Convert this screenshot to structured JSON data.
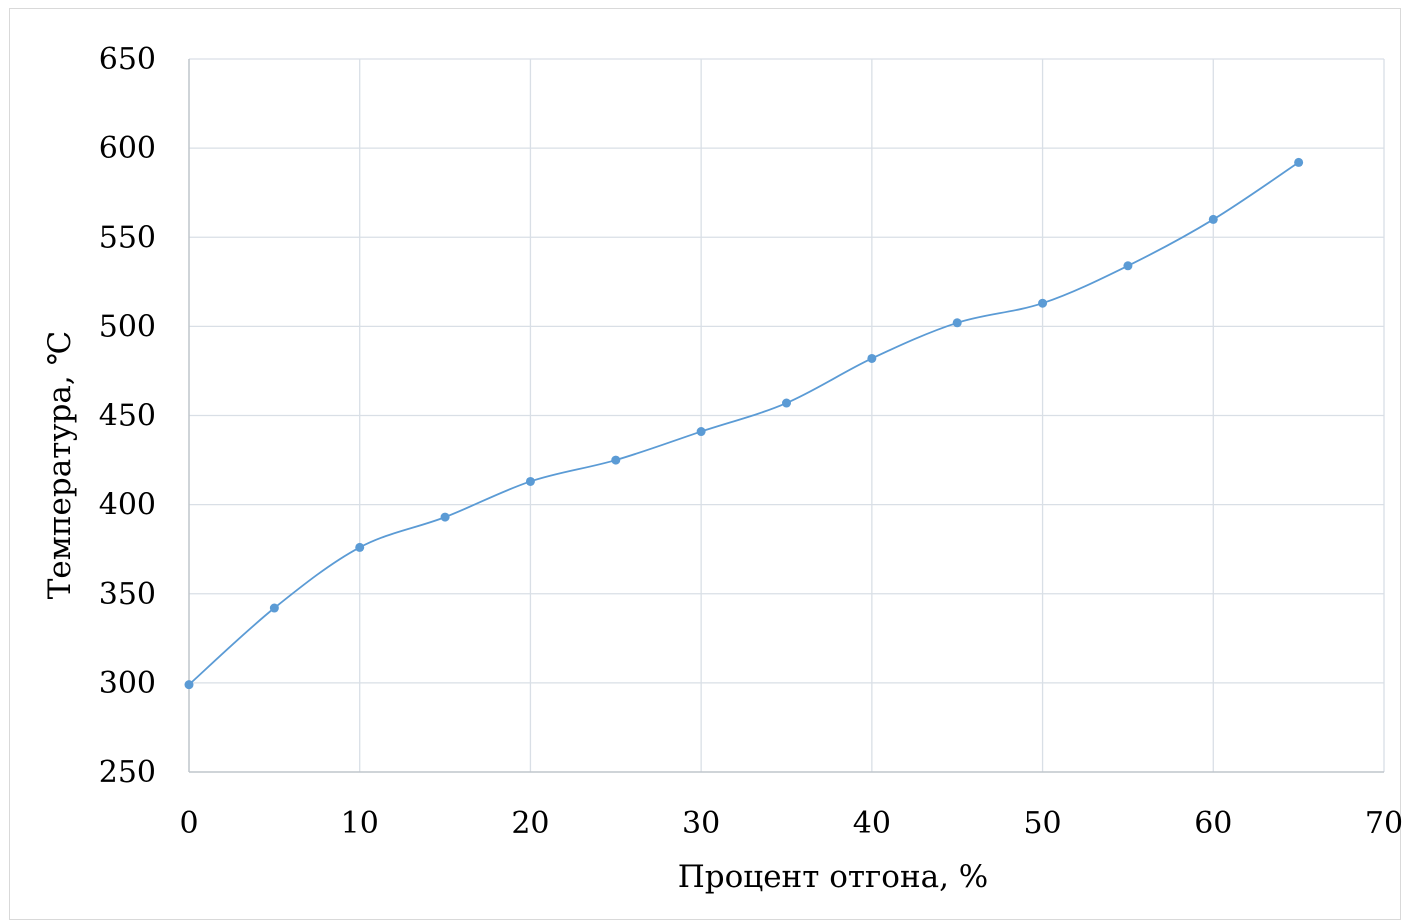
{
  "chart_data": {
    "type": "line",
    "smooth": true,
    "markers": true,
    "title": "",
    "xlabel": "Процент отгона, %",
    "ylabel": "Температура, ℃",
    "xlim": [
      0,
      70
    ],
    "ylim": [
      250,
      650
    ],
    "xticks": [
      0,
      10,
      20,
      30,
      40,
      50,
      60,
      70
    ],
    "yticks": [
      250,
      300,
      350,
      400,
      450,
      500,
      550,
      600,
      650
    ],
    "grid": true,
    "legend": "none",
    "series": [
      {
        "color": "#5b9bd5",
        "x": [
          0,
          5,
          10,
          15,
          20,
          25,
          30,
          35,
          40,
          45,
          50,
          55,
          60,
          65
        ],
        "y": [
          299,
          342,
          376,
          393,
          413,
          425,
          441,
          457,
          482,
          502,
          513,
          534,
          560,
          592
        ]
      }
    ]
  },
  "colors": {
    "grid": "#d9dfe6",
    "axis": "#bfc5cc"
  }
}
